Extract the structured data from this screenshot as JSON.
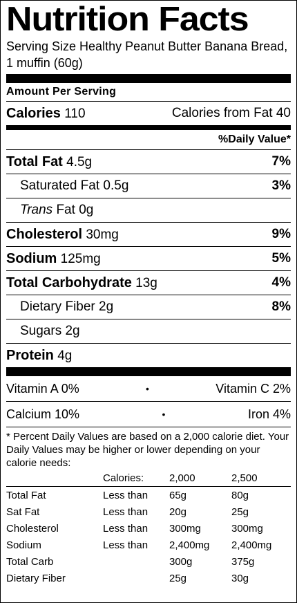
{
  "title": "Nutrition Facts",
  "serving_size": "Serving Size Healthy Peanut Butter Banana Bread, 1 muffin (60g)",
  "amount_per_serving": "Amount Per Serving",
  "calories": {
    "label": "Calories",
    "value": "110",
    "from_fat_label": "Calories from Fat",
    "from_fat_value": "40"
  },
  "daily_value_header": "%Daily Value*",
  "nutrients": [
    {
      "label": "Total Fat",
      "amount": "4.5g",
      "pct": "7%",
      "bold": true
    },
    {
      "label": "Saturated Fat",
      "amount": "0.5g",
      "pct": "3%",
      "bold": false
    },
    {
      "label_italic": "Trans",
      "label": "Fat",
      "amount": "0g",
      "pct": "",
      "bold": false
    },
    {
      "label": "Cholesterol",
      "amount": "30mg",
      "pct": "9%",
      "bold": true
    },
    {
      "label": "Sodium",
      "amount": "125mg",
      "pct": "5%",
      "bold": true
    },
    {
      "label": "Total Carbohydrate",
      "amount": "13g",
      "pct": "4%",
      "bold": true
    },
    {
      "label": "Dietary Fiber",
      "amount": "2g",
      "pct": "8%",
      "bold": false
    },
    {
      "label": "Sugars",
      "amount": "2g",
      "pct": "",
      "bold": false
    },
    {
      "label": "Protein",
      "amount": "4g",
      "pct": "",
      "bold": true
    }
  ],
  "vitamins": [
    {
      "left": "Vitamin A 0%",
      "right": "Vitamin C 2%"
    },
    {
      "left": "Calcium 10%",
      "right": "Iron 4%"
    }
  ],
  "bullet": "•",
  "footnote": "* Percent Daily Values are based on a 2,000 calorie diet. Your Daily Values may be higher or lower depending on your calorie needs:",
  "dv_table": {
    "header": [
      "",
      "Calories:",
      "2,000",
      "2,500"
    ],
    "rows": [
      [
        "Total Fat",
        "Less than",
        "65g",
        "80g"
      ],
      [
        "Sat Fat",
        "Less than",
        "20g",
        "25g"
      ],
      [
        "Cholesterol",
        "Less than",
        "300mg",
        "300mg"
      ],
      [
        "Sodium",
        "Less than",
        "2,400mg",
        "2,400mg"
      ],
      [
        "Total Carb",
        "",
        "300g",
        "375g"
      ],
      [
        "Dietary Fiber",
        "",
        "25g",
        "30g"
      ]
    ]
  }
}
